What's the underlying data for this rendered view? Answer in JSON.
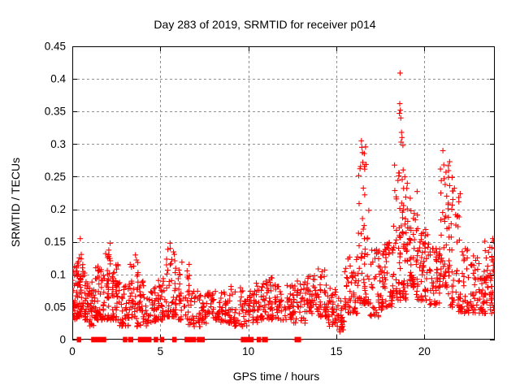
{
  "figure": {
    "title": "Day 283 of 2019, SRMTID for receiver p014",
    "xlabel": "GPS time / hours",
    "ylabel": "SRMTID / TECUs"
  },
  "chart_data": {
    "type": "scatter",
    "title": "Day 283 of 2019, SRMTID for receiver p014",
    "xlabel": "GPS time / hours",
    "ylabel": "SRMTID / TECUs",
    "series_name": "SRMTID",
    "marker": "plus",
    "marker_color": "#ff0000",
    "grid_color": "#909090",
    "frame_color": "#000000",
    "grid": "dashed, both axes",
    "legend": "none",
    "xlim": [
      0,
      24
    ],
    "ylim": [
      0,
      0.45
    ],
    "xticks": [
      {
        "v": 0,
        "label": "0"
      },
      {
        "v": 5,
        "label": "5"
      },
      {
        "v": 10,
        "label": "10"
      },
      {
        "v": 15,
        "label": "15"
      },
      {
        "v": 20,
        "label": "20"
      }
    ],
    "yticks": [
      {
        "v": 0,
        "label": "0"
      },
      {
        "v": 0.05,
        "label": "0.05"
      },
      {
        "v": 0.1,
        "label": "0.1"
      },
      {
        "v": 0.15,
        "label": "0.15"
      },
      {
        "v": 0.2,
        "label": "0.2"
      },
      {
        "v": 0.25,
        "label": "0.25"
      },
      {
        "v": 0.3,
        "label": "0.3"
      },
      {
        "v": 0.35,
        "label": "0.35"
      },
      {
        "v": 0.4,
        "label": "0.4"
      },
      {
        "v": 0.45,
        "label": "0.45"
      }
    ],
    "outlier_points": [
      [
        0.45,
        0.155
      ],
      [
        2.15,
        0.148
      ],
      [
        5.55,
        0.148
      ],
      [
        15.2,
        0.012
      ],
      [
        15.3,
        0.018
      ],
      [
        16.42,
        0.305
      ],
      [
        16.45,
        0.295
      ],
      [
        16.48,
        0.287
      ],
      [
        16.5,
        0.272
      ],
      [
        18.62,
        0.409
      ],
      [
        18.6,
        0.362
      ],
      [
        18.63,
        0.352
      ],
      [
        18.58,
        0.347
      ],
      [
        18.66,
        0.34
      ],
      [
        18.7,
        0.318
      ],
      [
        18.73,
        0.31
      ],
      [
        18.68,
        0.303
      ],
      [
        18.78,
        0.298
      ],
      [
        19.0,
        0.232
      ],
      [
        21.05,
        0.29
      ],
      [
        21.1,
        0.268
      ],
      [
        21.12,
        0.247
      ],
      [
        21.18,
        0.238
      ],
      [
        21.6,
        0.228
      ],
      [
        21.62,
        0.215
      ]
    ],
    "zero_segments": [
      [
        0.28,
        0.5
      ],
      [
        1.1,
        1.9
      ],
      [
        2.9,
        3.1
      ],
      [
        3.2,
        3.45
      ],
      [
        3.75,
        4.5
      ],
      [
        4.65,
        4.85
      ],
      [
        5.0,
        5.2
      ],
      [
        5.7,
        5.9
      ],
      [
        6.4,
        7.0
      ],
      [
        7.1,
        7.5
      ],
      [
        9.6,
        10.3
      ],
      [
        10.5,
        10.7
      ],
      [
        10.8,
        11.1
      ],
      [
        12.65,
        13.0
      ]
    ],
    "density_bins": [
      {
        "x0": 0.0,
        "x1": 0.3,
        "ymin": 0.03,
        "ymax": 0.125,
        "n": 40,
        "skew": 1.6
      },
      {
        "x0": 0.3,
        "x1": 0.6,
        "ymin": 0.035,
        "ymax": 0.135,
        "n": 45,
        "skew": 1.6
      },
      {
        "x0": 0.6,
        "x1": 0.9,
        "ymin": 0.03,
        "ymax": 0.11,
        "n": 30,
        "skew": 1.8
      },
      {
        "x0": 0.9,
        "x1": 1.3,
        "ymin": 0.02,
        "ymax": 0.09,
        "n": 35,
        "skew": 1.6
      },
      {
        "x0": 1.3,
        "x1": 1.8,
        "ymin": 0.03,
        "ymax": 0.115,
        "n": 45,
        "skew": 1.8
      },
      {
        "x0": 1.8,
        "x1": 2.3,
        "ymin": 0.03,
        "ymax": 0.145,
        "n": 55,
        "skew": 1.8
      },
      {
        "x0": 2.3,
        "x1": 2.7,
        "ymin": 0.03,
        "ymax": 0.13,
        "n": 40,
        "skew": 1.8
      },
      {
        "x0": 2.7,
        "x1": 3.2,
        "ymin": 0.02,
        "ymax": 0.085,
        "n": 35,
        "skew": 1.5
      },
      {
        "x0": 3.2,
        "x1": 3.7,
        "ymin": 0.03,
        "ymax": 0.13,
        "n": 40,
        "skew": 1.8
      },
      {
        "x0": 3.7,
        "x1": 4.2,
        "ymin": 0.02,
        "ymax": 0.09,
        "n": 35,
        "skew": 1.6
      },
      {
        "x0": 4.2,
        "x1": 4.7,
        "ymin": 0.025,
        "ymax": 0.08,
        "n": 30,
        "skew": 1.5
      },
      {
        "x0": 4.7,
        "x1": 5.2,
        "ymin": 0.03,
        "ymax": 0.1,
        "n": 35,
        "skew": 1.6
      },
      {
        "x0": 5.2,
        "x1": 5.9,
        "ymin": 0.035,
        "ymax": 0.145,
        "n": 55,
        "skew": 1.8
      },
      {
        "x0": 5.9,
        "x1": 6.6,
        "ymin": 0.03,
        "ymax": 0.12,
        "n": 40,
        "skew": 1.8
      },
      {
        "x0": 6.6,
        "x1": 7.2,
        "ymin": 0.02,
        "ymax": 0.075,
        "n": 30,
        "skew": 1.5
      },
      {
        "x0": 7.2,
        "x1": 7.8,
        "ymin": 0.025,
        "ymax": 0.075,
        "n": 35,
        "skew": 1.4
      },
      {
        "x0": 7.8,
        "x1": 8.5,
        "ymin": 0.03,
        "ymax": 0.08,
        "n": 40,
        "skew": 1.4
      },
      {
        "x0": 8.5,
        "x1": 9.2,
        "ymin": 0.025,
        "ymax": 0.085,
        "n": 40,
        "skew": 1.5
      },
      {
        "x0": 9.2,
        "x1": 9.9,
        "ymin": 0.02,
        "ymax": 0.08,
        "n": 35,
        "skew": 1.5
      },
      {
        "x0": 9.9,
        "x1": 10.5,
        "ymin": 0.025,
        "ymax": 0.085,
        "n": 35,
        "skew": 1.5
      },
      {
        "x0": 10.5,
        "x1": 11.2,
        "ymin": 0.03,
        "ymax": 0.09,
        "n": 45,
        "skew": 1.5
      },
      {
        "x0": 11.2,
        "x1": 11.9,
        "ymin": 0.03,
        "ymax": 0.1,
        "n": 45,
        "skew": 1.6
      },
      {
        "x0": 11.9,
        "x1": 12.6,
        "ymin": 0.03,
        "ymax": 0.085,
        "n": 40,
        "skew": 1.5
      },
      {
        "x0": 12.6,
        "x1": 13.2,
        "ymin": 0.025,
        "ymax": 0.09,
        "n": 35,
        "skew": 1.5
      },
      {
        "x0": 13.2,
        "x1": 13.9,
        "ymin": 0.04,
        "ymax": 0.105,
        "n": 45,
        "skew": 1.5
      },
      {
        "x0": 13.9,
        "x1": 14.6,
        "ymin": 0.035,
        "ymax": 0.11,
        "n": 45,
        "skew": 1.5
      },
      {
        "x0": 14.6,
        "x1": 15.1,
        "ymin": 0.02,
        "ymax": 0.08,
        "n": 35,
        "skew": 1.4
      },
      {
        "x0": 15.1,
        "x1": 15.5,
        "ymin": 0.015,
        "ymax": 0.06,
        "n": 25,
        "skew": 1.3
      },
      {
        "x0": 15.5,
        "x1": 16.2,
        "ymin": 0.04,
        "ymax": 0.13,
        "n": 50,
        "skew": 1.7
      },
      {
        "x0": 16.2,
        "x1": 16.8,
        "ymin": 0.055,
        "ymax": 0.3,
        "n": 60,
        "skew": 2.2
      },
      {
        "x0": 16.8,
        "x1": 17.6,
        "ymin": 0.035,
        "ymax": 0.14,
        "n": 50,
        "skew": 1.5
      },
      {
        "x0": 17.6,
        "x1": 18.2,
        "ymin": 0.05,
        "ymax": 0.15,
        "n": 50,
        "skew": 1.5
      },
      {
        "x0": 18.2,
        "x1": 19.0,
        "ymin": 0.06,
        "ymax": 0.27,
        "n": 90,
        "skew": 1.8
      },
      {
        "x0": 19.0,
        "x1": 19.6,
        "ymin": 0.08,
        "ymax": 0.23,
        "n": 55,
        "skew": 1.8
      },
      {
        "x0": 19.6,
        "x1": 20.3,
        "ymin": 0.06,
        "ymax": 0.17,
        "n": 55,
        "skew": 1.6
      },
      {
        "x0": 20.3,
        "x1": 20.9,
        "ymin": 0.05,
        "ymax": 0.14,
        "n": 45,
        "skew": 1.5
      },
      {
        "x0": 20.9,
        "x1": 21.4,
        "ymin": 0.08,
        "ymax": 0.29,
        "n": 50,
        "skew": 2.0
      },
      {
        "x0": 21.4,
        "x1": 22.0,
        "ymin": 0.05,
        "ymax": 0.25,
        "n": 45,
        "skew": 2.2
      },
      {
        "x0": 22.0,
        "x1": 22.7,
        "ymin": 0.04,
        "ymax": 0.16,
        "n": 50,
        "skew": 1.7
      },
      {
        "x0": 22.7,
        "x1": 23.4,
        "ymin": 0.04,
        "ymax": 0.13,
        "n": 50,
        "skew": 1.5
      },
      {
        "x0": 23.4,
        "x1": 24.0,
        "ymin": 0.04,
        "ymax": 0.155,
        "n": 60,
        "skew": 1.6
      }
    ]
  }
}
